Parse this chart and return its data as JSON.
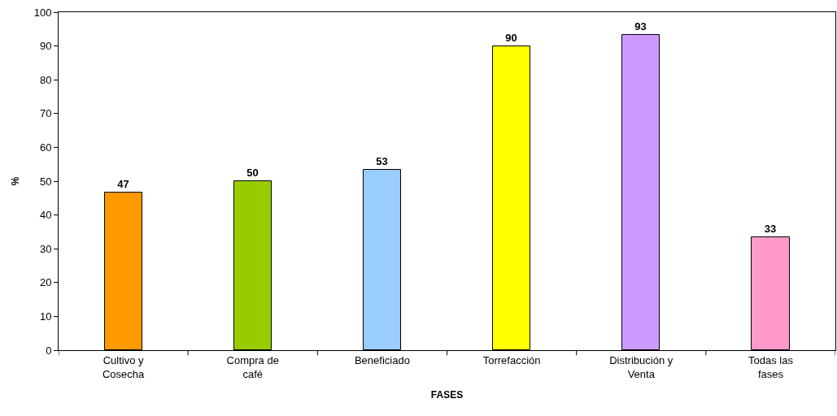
{
  "chart_data": {
    "type": "bar",
    "xlabel": "FASES",
    "ylabel": "%",
    "categories": [
      "Cultivo y Cosecha",
      "Compra de café",
      "Beneficiado",
      "Torrefacción",
      "Distribución y Venta",
      "Todas las fases"
    ],
    "values": [
      46.7,
      50,
      53.3,
      90,
      93.3,
      33.3
    ],
    "value_labels": [
      "47",
      "50",
      "53",
      "90",
      "93",
      "33"
    ],
    "colors": [
      "#ff9900",
      "#99cc00",
      "#99ccff",
      "#ffff00",
      "#cc99ff",
      "#ff99cc"
    ],
    "ylim": [
      0,
      100
    ],
    "yticks": [
      0,
      10,
      20,
      30,
      40,
      50,
      60,
      70,
      80,
      90,
      100
    ]
  }
}
